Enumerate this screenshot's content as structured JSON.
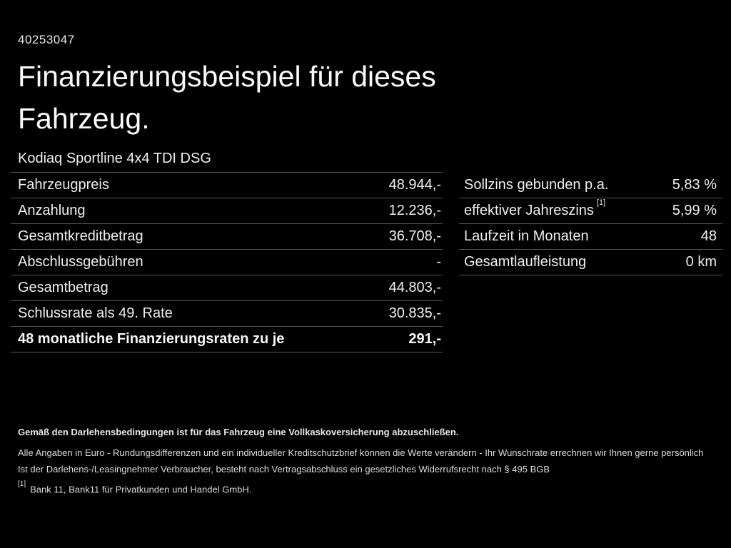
{
  "page": {
    "id_number": "40253047",
    "title_line1": "Finanzierungsbeispiel für dieses",
    "title_line2": "Fahrzeug.",
    "vehicle_name": "Kodiaq Sportline 4x4 TDI DSG"
  },
  "left_table": {
    "rows": [
      {
        "label": "Fahrzeugpreis",
        "value": "48.944,-"
      },
      {
        "label": "Anzahlung",
        "value": "12.236,-"
      },
      {
        "label": "Gesamtkreditbetrag",
        "value": "36.708,-"
      },
      {
        "label": "Abschlussgebühren",
        "value": "-"
      },
      {
        "label": "Gesamtbetrag",
        "value": "44.803,-"
      },
      {
        "label": "Schlussrate als 49. Rate",
        "value": "30.835,-"
      },
      {
        "label": "48 monatliche Finanzierungsraten zu je",
        "value": "291,-"
      }
    ]
  },
  "right_table": {
    "rows": [
      {
        "label": "Sollzins gebunden p.a.",
        "value": "5,83 %"
      },
      {
        "label": "effektiver Jahreszins",
        "footnote": "[1]",
        "value": "5,99 %"
      },
      {
        "label": "Laufzeit in Monaten",
        "value": "48"
      },
      {
        "label": "Gesamtlaufleistung",
        "value": "0 km"
      }
    ]
  },
  "footer": {
    "bold_line": "Gemäß den Darlehensbedingungen ist für das Fahrzeug eine Vollkaskoversicherung abzuschließen.",
    "line2": "Alle Angaben in Euro - Rundungsdifferenzen und ein individueller Kreditschutzbrief können die Werte verändern - Ihr Wunschrate errechnen wir Ihnen gerne persönlich",
    "line3": "Ist der Darlehens-/Leasingnehmer Verbraucher, besteht nach Vertragsabschluss ein gesetzliches Widerrufsrecht nach § 495 BGB",
    "footnote_marker": "[1]",
    "footnote_text": "Bank 11, Bank11 für Privatkunden und Handel GmbH."
  },
  "colors": {
    "background": "#000000",
    "text": "#f2f2f2",
    "divider": "#565656"
  }
}
